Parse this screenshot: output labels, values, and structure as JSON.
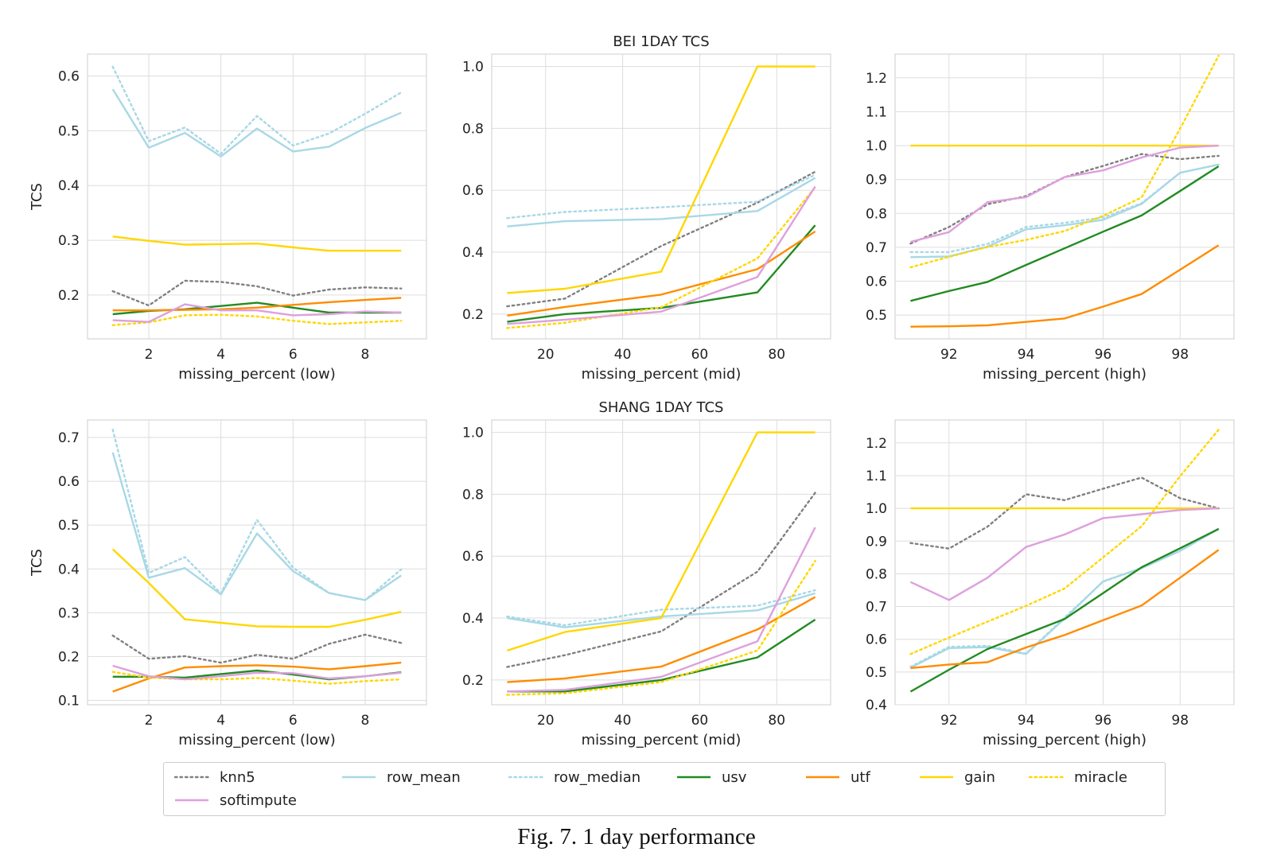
{
  "caption": "Fig. 7.  1 day performance",
  "legend": [
    {
      "key": "knn5",
      "label": "knn5",
      "color": "#808080",
      "dash": "dotted"
    },
    {
      "key": "row_mean",
      "label": "row_mean",
      "color": "#a8d8e6",
      "dash": "solid"
    },
    {
      "key": "row_median",
      "label": "row_median",
      "color": "#a8d8e6",
      "dash": "dotted"
    },
    {
      "key": "usv",
      "label": "usv",
      "color": "#228b22",
      "dash": "solid"
    },
    {
      "key": "utf",
      "label": "utf",
      "color": "#ff8c00",
      "dash": "solid"
    },
    {
      "key": "gain",
      "label": "gain",
      "color": "#ffd700",
      "dash": "solid"
    },
    {
      "key": "miracle",
      "label": "miracle",
      "color": "#ffd700",
      "dash": "dotted"
    },
    {
      "key": "softimpute",
      "label": "softimpute",
      "color": "#dda0dd",
      "dash": "solid"
    }
  ],
  "chart_data": [
    {
      "type": "line",
      "title": "",
      "xlabel": "missing_percent (low)",
      "ylabel": "TCS",
      "x": [
        1,
        2,
        3,
        4,
        5,
        6,
        7,
        8,
        9
      ],
      "xlim": [
        0.3,
        9.7
      ],
      "ylim": [
        0.12,
        0.64
      ],
      "xticks": [
        2,
        4,
        6,
        8
      ],
      "yticks": [
        0.2,
        0.3,
        0.4,
        0.5,
        0.6
      ],
      "grid": true,
      "series": [
        {
          "name": "knn5",
          "values": [
            0.207,
            0.181,
            0.226,
            0.224,
            0.216,
            0.199,
            0.21,
            0.214,
            0.212
          ]
        },
        {
          "name": "row_mean",
          "values": [
            0.576,
            0.469,
            0.496,
            0.453,
            0.504,
            0.462,
            0.471,
            0.505,
            0.533
          ]
        },
        {
          "name": "row_median",
          "values": [
            0.617,
            0.481,
            0.506,
            0.458,
            0.527,
            0.473,
            0.495,
            0.531,
            0.57
          ]
        },
        {
          "name": "usv",
          "values": [
            0.165,
            0.171,
            0.174,
            0.18,
            0.186,
            0.177,
            0.168,
            0.168,
            0.168
          ]
        },
        {
          "name": "utf",
          "values": [
            0.172,
            0.172,
            0.173,
            0.174,
            0.177,
            0.182,
            0.187,
            0.191,
            0.195
          ]
        },
        {
          "name": "gain",
          "values": [
            0.307,
            0.299,
            0.292,
            0.293,
            0.294,
            0.287,
            0.281,
            0.281,
            0.281
          ]
        },
        {
          "name": "miracle",
          "values": [
            0.145,
            0.15,
            0.163,
            0.164,
            0.161,
            0.153,
            0.147,
            0.15,
            0.153
          ]
        },
        {
          "name": "softimpute",
          "values": [
            0.154,
            0.151,
            0.183,
            0.172,
            0.172,
            0.163,
            0.165,
            0.17,
            0.168
          ]
        }
      ]
    },
    {
      "type": "line",
      "title": "BEI 1DAY TCS",
      "xlabel": "missing_percent (mid)",
      "ylabel": "",
      "x": [
        10,
        25,
        50,
        75,
        90
      ],
      "xlim": [
        6,
        94
      ],
      "ylim": [
        0.12,
        1.04
      ],
      "xticks": [
        20,
        40,
        60,
        80
      ],
      "yticks": [
        0.2,
        0.4,
        0.6,
        0.8,
        1.0
      ],
      "grid": true,
      "series": [
        {
          "name": "knn5",
          "values": [
            0.225,
            0.25,
            0.42,
            0.56,
            0.66
          ]
        },
        {
          "name": "row_mean",
          "values": [
            0.483,
            0.5,
            0.507,
            0.533,
            0.64
          ]
        },
        {
          "name": "row_median",
          "values": [
            0.51,
            0.53,
            0.545,
            0.563,
            0.65
          ]
        },
        {
          "name": "usv",
          "values": [
            0.175,
            0.2,
            0.22,
            0.27,
            0.487
          ]
        },
        {
          "name": "utf",
          "values": [
            0.195,
            0.223,
            0.263,
            0.345,
            0.467
          ]
        },
        {
          "name": "gain",
          "values": [
            0.268,
            0.282,
            0.337,
            1.0,
            1.0
          ]
        },
        {
          "name": "miracle",
          "values": [
            0.155,
            0.172,
            0.222,
            0.38,
            0.61
          ]
        },
        {
          "name": "softimpute",
          "values": [
            0.168,
            0.182,
            0.208,
            0.32,
            0.612
          ]
        }
      ]
    },
    {
      "type": "line",
      "title": "",
      "xlabel": "missing_percent (high)",
      "ylabel": "",
      "x": [
        91,
        92,
        93,
        94,
        95,
        96,
        97,
        98,
        99
      ],
      "xlim": [
        90.6,
        99.4
      ],
      "ylim": [
        0.43,
        1.27
      ],
      "xticks": [
        92,
        94,
        96,
        98
      ],
      "yticks": [
        0.5,
        0.6,
        0.7,
        0.8,
        0.9,
        1.0,
        1.1,
        1.2
      ],
      "grid": true,
      "series": [
        {
          "name": "knn5",
          "values": [
            0.711,
            0.76,
            0.827,
            0.851,
            0.907,
            0.94,
            0.975,
            0.96,
            0.97
          ]
        },
        {
          "name": "row_mean",
          "values": [
            0.671,
            0.673,
            0.702,
            0.753,
            0.765,
            0.781,
            0.828,
            0.92,
            0.944
          ]
        },
        {
          "name": "row_median",
          "values": [
            0.686,
            0.686,
            0.71,
            0.76,
            0.772,
            0.788,
            0.83,
            0.92,
            0.944
          ]
        },
        {
          "name": "usv",
          "values": [
            0.542,
            0.571,
            0.598,
            0.648,
            0.697,
            0.746,
            0.794,
            0.866,
            0.939
          ]
        },
        {
          "name": "utf",
          "values": [
            0.466,
            0.467,
            0.47,
            0.48,
            0.49,
            0.525,
            0.562,
            0.634,
            0.706
          ]
        },
        {
          "name": "gain",
          "values": [
            1.0,
            1.0,
            1.0,
            1.0,
            1.0,
            1.0,
            1.0,
            1.0,
            1.0
          ]
        },
        {
          "name": "miracle",
          "values": [
            0.641,
            0.672,
            0.701,
            0.722,
            0.748,
            0.793,
            0.847,
            1.05,
            1.265
          ]
        },
        {
          "name": "softimpute",
          "values": [
            0.716,
            0.745,
            0.833,
            0.848,
            0.907,
            0.927,
            0.965,
            0.994,
            1.0
          ]
        }
      ]
    },
    {
      "type": "line",
      "title": "",
      "xlabel": "missing_percent (low)",
      "ylabel": "TCS",
      "x": [
        1,
        2,
        3,
        4,
        5,
        6,
        7,
        8,
        9
      ],
      "xlim": [
        0.3,
        9.7
      ],
      "ylim": [
        0.09,
        0.74
      ],
      "xticks": [
        2,
        4,
        6,
        8
      ],
      "yticks": [
        0.1,
        0.2,
        0.3,
        0.4,
        0.5,
        0.6,
        0.7
      ],
      "grid": true,
      "series": [
        {
          "name": "knn5",
          "values": [
            0.248,
            0.195,
            0.201,
            0.186,
            0.204,
            0.195,
            0.229,
            0.25,
            0.231
          ]
        },
        {
          "name": "row_mean",
          "values": [
            0.666,
            0.38,
            0.402,
            0.342,
            0.481,
            0.395,
            0.345,
            0.329,
            0.385
          ]
        },
        {
          "name": "row_median",
          "values": [
            0.718,
            0.391,
            0.427,
            0.344,
            0.512,
            0.403,
            0.345,
            0.329,
            0.399
          ]
        },
        {
          "name": "usv",
          "values": [
            0.154,
            0.154,
            0.152,
            0.16,
            0.168,
            0.159,
            0.148,
            0.155,
            0.164
          ]
        },
        {
          "name": "utf",
          "values": [
            0.12,
            0.15,
            0.175,
            0.178,
            0.18,
            0.177,
            0.171,
            0.178,
            0.186
          ]
        },
        {
          "name": "gain",
          "values": [
            0.445,
            0.368,
            0.285,
            0.277,
            0.269,
            0.268,
            0.268,
            0.284,
            0.302
          ]
        },
        {
          "name": "miracle",
          "values": [
            0.165,
            0.152,
            0.148,
            0.148,
            0.151,
            0.145,
            0.138,
            0.144,
            0.148
          ]
        },
        {
          "name": "softimpute",
          "values": [
            0.179,
            0.155,
            0.148,
            0.155,
            0.163,
            0.162,
            0.15,
            0.155,
            0.163
          ]
        }
      ]
    },
    {
      "type": "line",
      "title": "SHANG 1DAY TCS",
      "xlabel": "missing_percent (mid)",
      "ylabel": "",
      "x": [
        10,
        25,
        50,
        75,
        90
      ],
      "xlim": [
        6,
        94
      ],
      "ylim": [
        0.12,
        1.04
      ],
      "xticks": [
        20,
        40,
        60,
        80
      ],
      "yticks": [
        0.2,
        0.4,
        0.6,
        0.8,
        1.0
      ],
      "grid": true,
      "series": [
        {
          "name": "knn5",
          "values": [
            0.242,
            0.28,
            0.357,
            0.55,
            0.805
          ]
        },
        {
          "name": "row_mean",
          "values": [
            0.4,
            0.37,
            0.405,
            0.425,
            0.48
          ]
        },
        {
          "name": "row_median",
          "values": [
            0.405,
            0.377,
            0.427,
            0.44,
            0.49
          ]
        },
        {
          "name": "usv",
          "values": [
            0.163,
            0.163,
            0.2,
            0.273,
            0.395
          ]
        },
        {
          "name": "utf",
          "values": [
            0.193,
            0.205,
            0.243,
            0.363,
            0.468
          ]
        },
        {
          "name": "gain",
          "values": [
            0.295,
            0.355,
            0.4,
            1.0,
            1.0
          ]
        },
        {
          "name": "miracle",
          "values": [
            0.152,
            0.157,
            0.193,
            0.295,
            0.585
          ]
        },
        {
          "name": "softimpute",
          "values": [
            0.163,
            0.168,
            0.21,
            0.325,
            0.693
          ]
        }
      ]
    },
    {
      "type": "line",
      "title": "",
      "xlabel": "missing_percent (high)",
      "ylabel": "",
      "x": [
        91,
        92,
        93,
        94,
        95,
        96,
        97,
        98,
        99
      ],
      "xlim": [
        90.6,
        99.4
      ],
      "ylim": [
        0.4,
        1.27
      ],
      "xticks": [
        92,
        94,
        96,
        98
      ],
      "yticks": [
        0.4,
        0.5,
        0.6,
        0.7,
        0.8,
        0.9,
        1.0,
        1.1,
        1.2
      ],
      "grid": true,
      "series": [
        {
          "name": "knn5",
          "values": [
            0.894,
            0.877,
            0.944,
            1.043,
            1.025,
            1.06,
            1.094,
            1.031,
            1.0
          ]
        },
        {
          "name": "row_mean",
          "values": [
            0.513,
            0.573,
            0.576,
            0.555,
            0.663,
            0.777,
            0.817,
            0.87,
            0.937
          ]
        },
        {
          "name": "row_median",
          "values": [
            0.516,
            0.577,
            0.58,
            0.556,
            0.666,
            0.776,
            0.818,
            0.87,
            0.937
          ]
        },
        {
          "name": "usv",
          "values": [
            0.44,
            0.507,
            0.57,
            0.616,
            0.662,
            0.741,
            0.82,
            0.878,
            0.937
          ]
        },
        {
          "name": "utf",
          "values": [
            0.512,
            0.523,
            0.53,
            0.575,
            0.613,
            0.658,
            0.703,
            0.788,
            0.873
          ]
        },
        {
          "name": "gain",
          "values": [
            1.0,
            1.0,
            1.0,
            1.0,
            1.0,
            1.0,
            1.0,
            1.0,
            1.0
          ]
        },
        {
          "name": "miracle",
          "values": [
            0.555,
            0.605,
            0.654,
            0.702,
            0.755,
            0.85,
            0.945,
            1.098,
            1.24
          ]
        },
        {
          "name": "softimpute",
          "values": [
            0.775,
            0.72,
            0.788,
            0.882,
            0.92,
            0.97,
            0.982,
            0.995,
            1.0
          ]
        }
      ]
    }
  ]
}
